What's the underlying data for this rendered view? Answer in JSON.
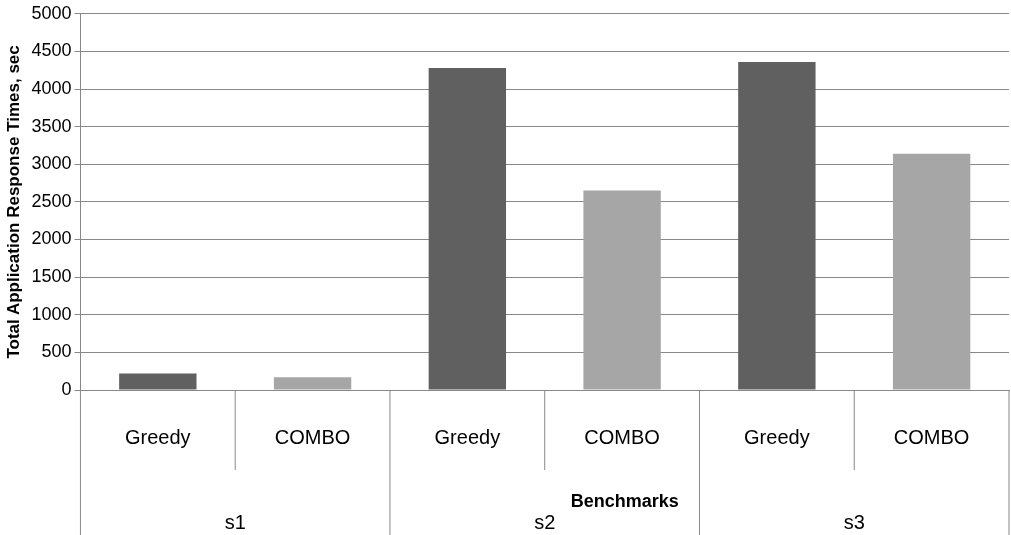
{
  "chart_data": {
    "type": "bar",
    "xlabel": "Benchmarks",
    "ylabel": "Total Application Response Times, sec",
    "categories": [
      "s1",
      "s2",
      "s3"
    ],
    "series": [
      {
        "name": "Greedy",
        "color": "#606060",
        "values": [
          220,
          4280,
          4360
        ]
      },
      {
        "name": "COMBO",
        "color": "#a6a6a6",
        "values": [
          170,
          2650,
          3140
        ]
      }
    ],
    "ylim": [
      0,
      5000
    ],
    "yticks": [
      0,
      500,
      1000,
      1500,
      2000,
      2500,
      3000,
      3500,
      4000,
      4500,
      5000
    ],
    "grid": "y",
    "legend": false
  }
}
